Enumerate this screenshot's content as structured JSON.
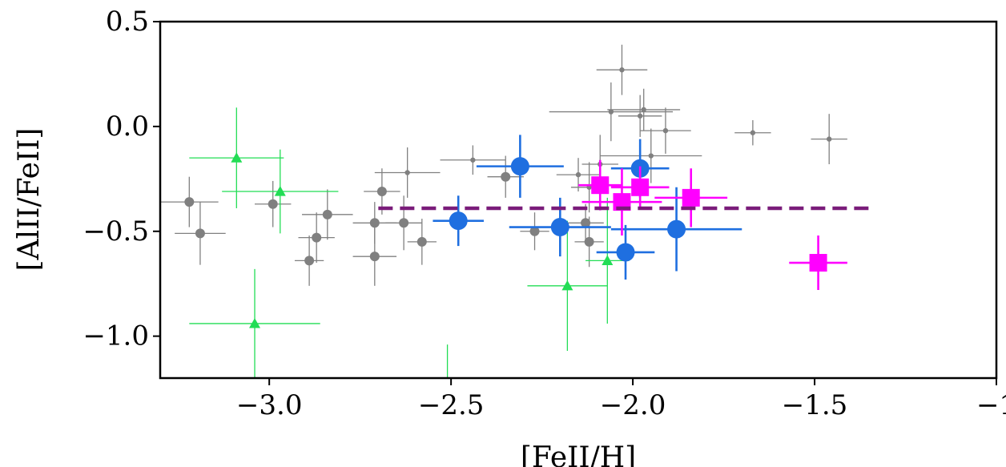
{
  "chart_data": {
    "type": "scatter",
    "xlabel": "[FeII/H]",
    "ylabel": "[AlII/FeII]",
    "xlim": [
      -3.3,
      -1.0
    ],
    "ylim": [
      -1.2,
      0.5
    ],
    "xticks": [
      -3.0,
      -2.5,
      -2.0,
      -1.5,
      -1.0
    ],
    "xtick_labels": [
      "−3.0",
      "−2.5",
      "−2.0",
      "−1.5",
      "−1"
    ],
    "yticks": [
      0.5,
      0.0,
      -0.5,
      -1.0
    ],
    "ytick_labels": [
      "0.5",
      "0.0",
      "−0.5",
      "−1.0"
    ],
    "grid": false,
    "series": [
      {
        "marker": "circle-small",
        "color": "#808080",
        "points": [
          {
            "x": -2.03,
            "y": 0.27,
            "xerr": 0.07,
            "yerr": 0.12
          },
          {
            "x": -2.06,
            "y": 0.07,
            "xerr": 0.17,
            "yerr": 0.14
          },
          {
            "x": -1.97,
            "y": 0.08,
            "xerr": 0.1,
            "yerr": 0.1
          },
          {
            "x": -1.98,
            "y": 0.05,
            "xerr": 0.06,
            "yerr": 0.1
          },
          {
            "x": -1.91,
            "y": -0.02,
            "xerr": 0.07,
            "yerr": 0.11
          },
          {
            "x": -1.95,
            "y": -0.14,
            "xerr": 0.14,
            "yerr": 0.13
          },
          {
            "x": -1.67,
            "y": -0.03,
            "xerr": 0.05,
            "yerr": 0.06
          },
          {
            "x": -1.46,
            "y": -0.06,
            "xerr": 0.05,
            "yerr": 0.12
          },
          {
            "x": -2.44,
            "y": -0.16,
            "xerr": 0.09,
            "yerr": 0.07
          },
          {
            "x": -2.62,
            "y": -0.22,
            "xerr": 0.09,
            "yerr": 0.12
          },
          {
            "x": -2.15,
            "y": -0.23,
            "xerr": 0.06,
            "yerr": 0.08
          },
          {
            "x": -2.12,
            "y": -0.29,
            "xerr": 0.05,
            "yerr": 0.12
          },
          {
            "x": -2.09,
            "y": -0.18,
            "xerr": 0.05,
            "yerr": 0.14
          }
        ]
      },
      {
        "marker": "circle",
        "color": "#808080",
        "points": [
          {
            "x": -3.22,
            "y": -0.36,
            "xerr": 0.08,
            "yerr": 0.12
          },
          {
            "x": -3.19,
            "y": -0.51,
            "xerr": 0.07,
            "yerr": 0.15
          },
          {
            "x": -2.99,
            "y": -0.37,
            "xerr": 0.05,
            "yerr": 0.11
          },
          {
            "x": -2.89,
            "y": -0.64,
            "xerr": 0.04,
            "yerr": 0.12
          },
          {
            "x": -2.87,
            "y": -0.53,
            "xerr": 0.05,
            "yerr": 0.12
          },
          {
            "x": -2.84,
            "y": -0.42,
            "xerr": 0.07,
            "yerr": 0.12
          },
          {
            "x": -2.71,
            "y": -0.46,
            "xerr": 0.06,
            "yerr": 0.1
          },
          {
            "x": -2.71,
            "y": -0.62,
            "xerr": 0.06,
            "yerr": 0.14
          },
          {
            "x": -2.69,
            "y": -0.31,
            "xerr": 0.05,
            "yerr": 0.11
          },
          {
            "x": -2.63,
            "y": -0.46,
            "xerr": 0.05,
            "yerr": 0.13
          },
          {
            "x": -2.58,
            "y": -0.55,
            "xerr": 0.04,
            "yerr": 0.11
          },
          {
            "x": -2.35,
            "y": -0.24,
            "xerr": 0.05,
            "yerr": 0.1
          },
          {
            "x": -2.27,
            "y": -0.5,
            "xerr": 0.04,
            "yerr": 0.09
          },
          {
            "x": -2.13,
            "y": -0.46,
            "xerr": 0.05,
            "yerr": 0.09
          },
          {
            "x": -2.12,
            "y": -0.55,
            "xerr": 0.04,
            "yerr": 0.12
          }
        ]
      },
      {
        "marker": "circle-large",
        "color": "#1f6fe0",
        "points": [
          {
            "x": -2.48,
            "y": -0.45,
            "xerr": 0.07,
            "yerr": 0.12
          },
          {
            "x": -2.31,
            "y": -0.19,
            "xerr": 0.12,
            "yerr": 0.15
          },
          {
            "x": -2.2,
            "y": -0.48,
            "xerr": 0.14,
            "yerr": 0.14
          },
          {
            "x": -2.02,
            "y": -0.6,
            "xerr": 0.08,
            "yerr": 0.13
          },
          {
            "x": -1.98,
            "y": -0.2,
            "xerr": 0.08,
            "yerr": 0.14
          },
          {
            "x": -1.88,
            "y": -0.49,
            "xerr": 0.18,
            "yerr": 0.2
          }
        ]
      },
      {
        "marker": "square",
        "color": "#ff00ff",
        "points": [
          {
            "x": -2.09,
            "y": -0.28,
            "xerr": 0.06,
            "yerr": 0.12
          },
          {
            "x": -2.03,
            "y": -0.36,
            "xerr": 0.11,
            "yerr": 0.16
          },
          {
            "x": -1.98,
            "y": -0.29,
            "xerr": 0.08,
            "yerr": 0.1
          },
          {
            "x": -1.84,
            "y": -0.34,
            "xerr": 0.1,
            "yerr": 0.14
          },
          {
            "x": -1.49,
            "y": -0.65,
            "xerr": 0.08,
            "yerr": 0.13
          }
        ]
      },
      {
        "marker": "triangle",
        "color": "#22dd55",
        "points": [
          {
            "x": -3.09,
            "y": -0.15,
            "xerr": 0.13,
            "yerr": 0.24
          },
          {
            "x": -2.97,
            "y": -0.31,
            "xerr": 0.16,
            "yerr": 0.2
          },
          {
            "x": -3.04,
            "y": -0.94,
            "xerr": 0.18,
            "yerr": 0.26
          },
          {
            "x": -2.18,
            "y": -0.76,
            "xerr": 0.11,
            "yerr": 0.31
          },
          {
            "x": -2.07,
            "y": -0.64,
            "xerr": 0.06,
            "yerr": 0.3
          },
          {
            "x": -2.51,
            "y": -1.29,
            "xerr": 0.0,
            "yerr": 0.25
          }
        ]
      }
    ],
    "reference_line": {
      "x": [
        -2.7,
        -1.35
      ],
      "y": -0.39,
      "color": "#7a1c7a",
      "style": "dashed"
    }
  }
}
